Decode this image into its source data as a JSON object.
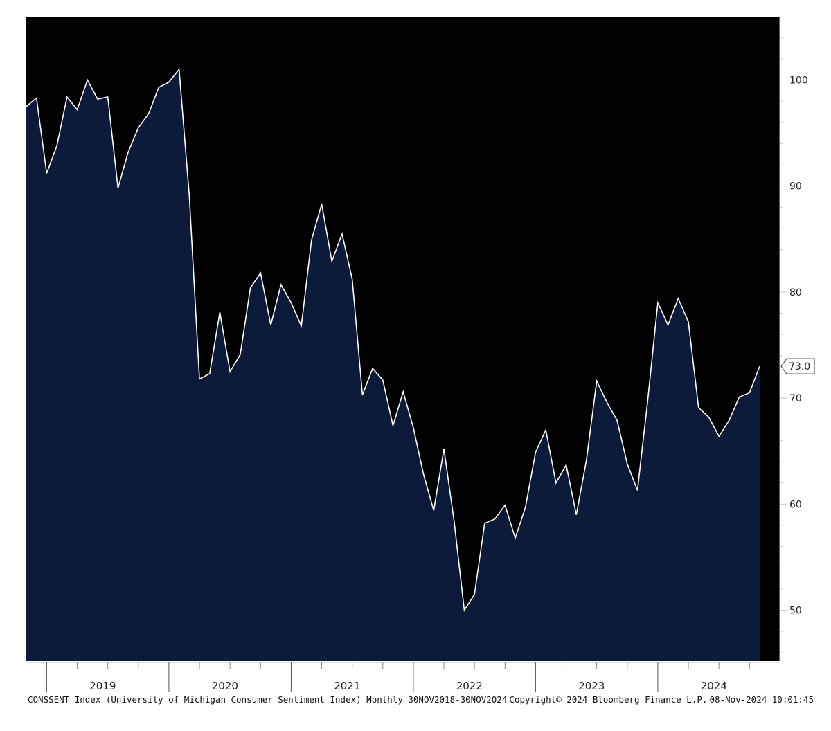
{
  "colors": {
    "background": "#000000",
    "area_fill": "#0d1b3a",
    "line": "#ffffff",
    "axis": "#c8c8c8",
    "label_box": "#ffffff"
  },
  "footer": {
    "series_desc": "CONSSENT Index (University of Michigan Consumer Sentiment Index)  Monthly 30NOV2018-30NOV2024",
    "copyright": "Copyright© 2024 Bloomberg Finance L.P.",
    "timestamp": "08-Nov-2024 10:01:45"
  },
  "chart_data": {
    "type": "area",
    "title": "",
    "xlabel": "",
    "ylabel": "",
    "ylim": [
      45,
      105
    ],
    "yticks": [
      50,
      60,
      70,
      80,
      90,
      100
    ],
    "ytick_labels": [
      "50",
      "60",
      "70",
      "80",
      "90",
      "100"
    ],
    "year_labels": [
      "2019",
      "2020",
      "2021",
      "2022",
      "2023",
      "2024"
    ],
    "last_value_label": "73.0",
    "grid": false,
    "x_start": "2018-11",
    "x_end": "2024-11",
    "series": [
      {
        "values": [
          97.5,
          98.3,
          91.2,
          93.8,
          98.4,
          97.2,
          100.0,
          98.2,
          98.4,
          89.8,
          93.2,
          95.5,
          96.8,
          99.3,
          99.8,
          101.0,
          89.1,
          71.8,
          72.3,
          78.1,
          72.5,
          74.1,
          80.4,
          81.8,
          76.9,
          80.7,
          79.0,
          76.8,
          84.9,
          88.3,
          82.9,
          85.5,
          81.2,
          70.3,
          72.8,
          71.7,
          67.4,
          70.6,
          67.2,
          62.8,
          59.4,
          65.2,
          58.4,
          50.0,
          51.5,
          58.2,
          58.6,
          59.9,
          56.8,
          59.7,
          64.9,
          67.0,
          62.0,
          63.7,
          59.0,
          64.2,
          71.6,
          69.6,
          67.9,
          63.8,
          61.3,
          69.7,
          79.0,
          76.9,
          79.4,
          77.2,
          69.1,
          68.2,
          66.4,
          67.9,
          70.1,
          70.5,
          73.0
        ]
      }
    ]
  }
}
